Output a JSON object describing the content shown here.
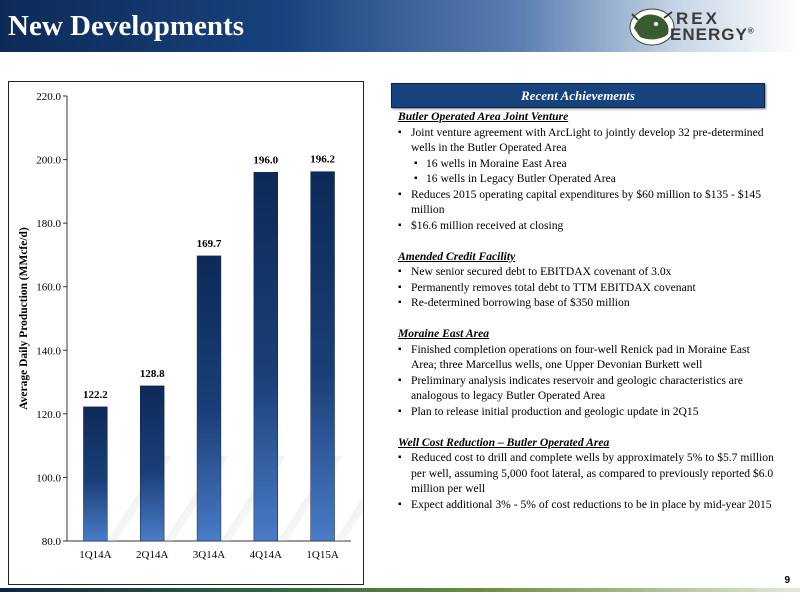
{
  "slide": {
    "title": "New Developments",
    "page_number": "9"
  },
  "logo": {
    "line1": "REX",
    "line2": "ENERGY",
    "mark": "®"
  },
  "achievements": {
    "header": "Recent Achievements",
    "sections": [
      {
        "title": "Butler Operated Area Joint Venture",
        "items": [
          {
            "text": "Joint venture agreement with ArcLight to jointly develop 32 pre-determined wells in the Butler Operated Area",
            "subitems": [
              "16 wells in Moraine East Area",
              "16 wells in Legacy Butler Operated Area"
            ]
          },
          {
            "text": "Reduces 2015 operating capital expenditures by $60 million  to $135 - $145 million",
            "subitems": []
          },
          {
            "text": "$16.6 million received at closing",
            "subitems": []
          }
        ]
      },
      {
        "title": "Amended Credit Facility",
        "items": [
          {
            "text": "New senior secured debt to EBITDAX covenant of 3.0x",
            "subitems": []
          },
          {
            "text": "Permanently removes total debt to TTM EBITDAX covenant",
            "subitems": []
          },
          {
            "text": "Re-determined borrowing base of $350 million",
            "subitems": []
          }
        ]
      },
      {
        "title": "Moraine East Area",
        "items": [
          {
            "text": "Finished completion operations on four-well Renick pad in Moraine East Area; three Marcellus wells, one Upper Devonian Burkett well",
            "subitems": []
          },
          {
            "text": "Preliminary analysis indicates reservoir and geologic characteristics are analogous to legacy Butler Operated Area",
            "subitems": []
          },
          {
            "text": "Plan to release initial production and geologic update in 2Q15",
            "subitems": []
          }
        ]
      },
      {
        "title": "Well Cost Reduction – Butler Operated Area",
        "items": [
          {
            "text": "Reduced cost to drill and complete wells by approximately 5% to $5.7 million per well, assuming 5,000 foot lateral, as compared to previously reported $6.0 million per well",
            "subitems": []
          },
          {
            "text": "Expect additional 3% - 5% of cost reductions to be in place by mid-year 2015",
            "subitems": []
          }
        ]
      }
    ]
  },
  "chart_data": {
    "type": "bar",
    "categories": [
      "1Q14A",
      "2Q14A",
      "3Q14A",
      "4Q14A",
      "1Q15A"
    ],
    "values": [
      122.2,
      128.8,
      169.7,
      196.0,
      196.2
    ],
    "value_labels": [
      "122.2",
      "128.8",
      "169.7",
      "196.0",
      "196.2"
    ],
    "ylabel": "Average Daily Production (MMcfe/d)",
    "ylim": [
      80,
      220
    ],
    "yticks": [
      "80.0",
      "100.0",
      "120.0",
      "140.0",
      "160.0",
      "180.0",
      "200.0",
      "220.0"
    ],
    "grid": false,
    "legend": "none",
    "bar_color": "#1a3f78"
  }
}
